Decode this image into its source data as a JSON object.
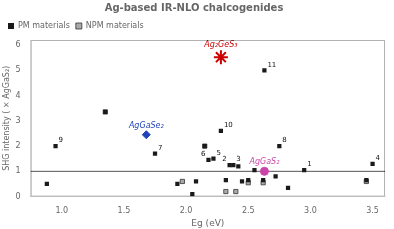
{
  "chart_data": {
    "type": "scatter",
    "title": "Ag-based IR-NLO chalcogenides",
    "x_label": "Eg (eV)",
    "y_label": "SHG intensity ( × AgGaS₂)",
    "xlim": [
      0.75,
      3.6
    ],
    "ylim": [
      0.0,
      6.2
    ],
    "xticks": [
      {
        "value": 1.0,
        "label": "1.0"
      },
      1.5,
      {
        "value": 2.0,
        "label": "2.0"
      },
      2.5,
      {
        "value": 3.0,
        "label": "3.0"
      },
      3.5
    ],
    "yticks": [
      0,
      1,
      2,
      3,
      4,
      5,
      6
    ],
    "grid": false,
    "legend": "upper left",
    "series": [
      {
        "name": "PM materials",
        "color": "#1a1a1a",
        "marker": "square",
        "x": [
          0.88,
          0.95,
          1.35,
          1.75,
          1.93,
          2.05,
          2.08,
          2.15,
          2.18,
          2.22,
          2.28,
          2.32,
          2.35,
          2.38,
          2.42,
          2.45,
          2.5,
          2.55,
          2.62,
          2.63,
          2.72,
          2.75,
          2.82,
          2.95,
          3.45,
          3.5
        ],
        "values": [
          0.5,
          2.0,
          3.35,
          1.7,
          0.5,
          0.1,
          0.6,
          2.0,
          1.45,
          1.5,
          2.6,
          0.65,
          1.25,
          1.25,
          1.2,
          0.6,
          0.65,
          1.05,
          0.65,
          5.0,
          0.8,
          2.0,
          0.35,
          1.05,
          0.65,
          1.3
        ]
      },
      {
        "name": "NPM materials",
        "color": "#aaaaaa",
        "marker": "square",
        "x": [
          1.35,
          2.15,
          1.97,
          2.32,
          2.4,
          2.5,
          2.62,
          3.45
        ],
        "values": [
          3.35,
          2.0,
          0.6,
          0.2,
          0.2,
          0.55,
          0.55,
          0.6
        ]
      }
    ],
    "reference_lines": [
      {
        "y": 1.0,
        "color": "#555555"
      }
    ],
    "annotations": [
      {
        "text": "Ag₂GeS₃",
        "x": 2.28,
        "y": 5.52,
        "color": "#cc0000",
        "marker": "star"
      },
      {
        "text": "AgGaSe₂",
        "x": 1.68,
        "y": 2.45,
        "color": "#2244bb",
        "marker": "diamond"
      },
      {
        "text": "AgGaS₂",
        "x": 2.63,
        "y": 1.0,
        "color": "#cc44aa",
        "marker": "circle"
      },
      {
        "text": "9",
        "x": 0.95,
        "y": 2.0
      },
      {
        "text": "11",
        "x": 2.63,
        "y": 5.0
      },
      {
        "text": "10",
        "x": 2.28,
        "y": 2.6
      },
      {
        "text": "7",
        "x": 1.75,
        "y": 1.7
      },
      {
        "text": "5",
        "x": 2.22,
        "y": 1.5
      },
      {
        "text": "6",
        "x": 2.18,
        "y": 1.45
      },
      {
        "text": "2",
        "x": 2.35,
        "y": 1.25
      },
      {
        "text": "3",
        "x": 2.38,
        "y": 1.25
      },
      {
        "text": "8",
        "x": 2.75,
        "y": 2.0
      },
      {
        "text": "1",
        "x": 2.95,
        "y": 1.05
      },
      {
        "text": "4",
        "x": 3.5,
        "y": 1.3
      }
    ]
  }
}
